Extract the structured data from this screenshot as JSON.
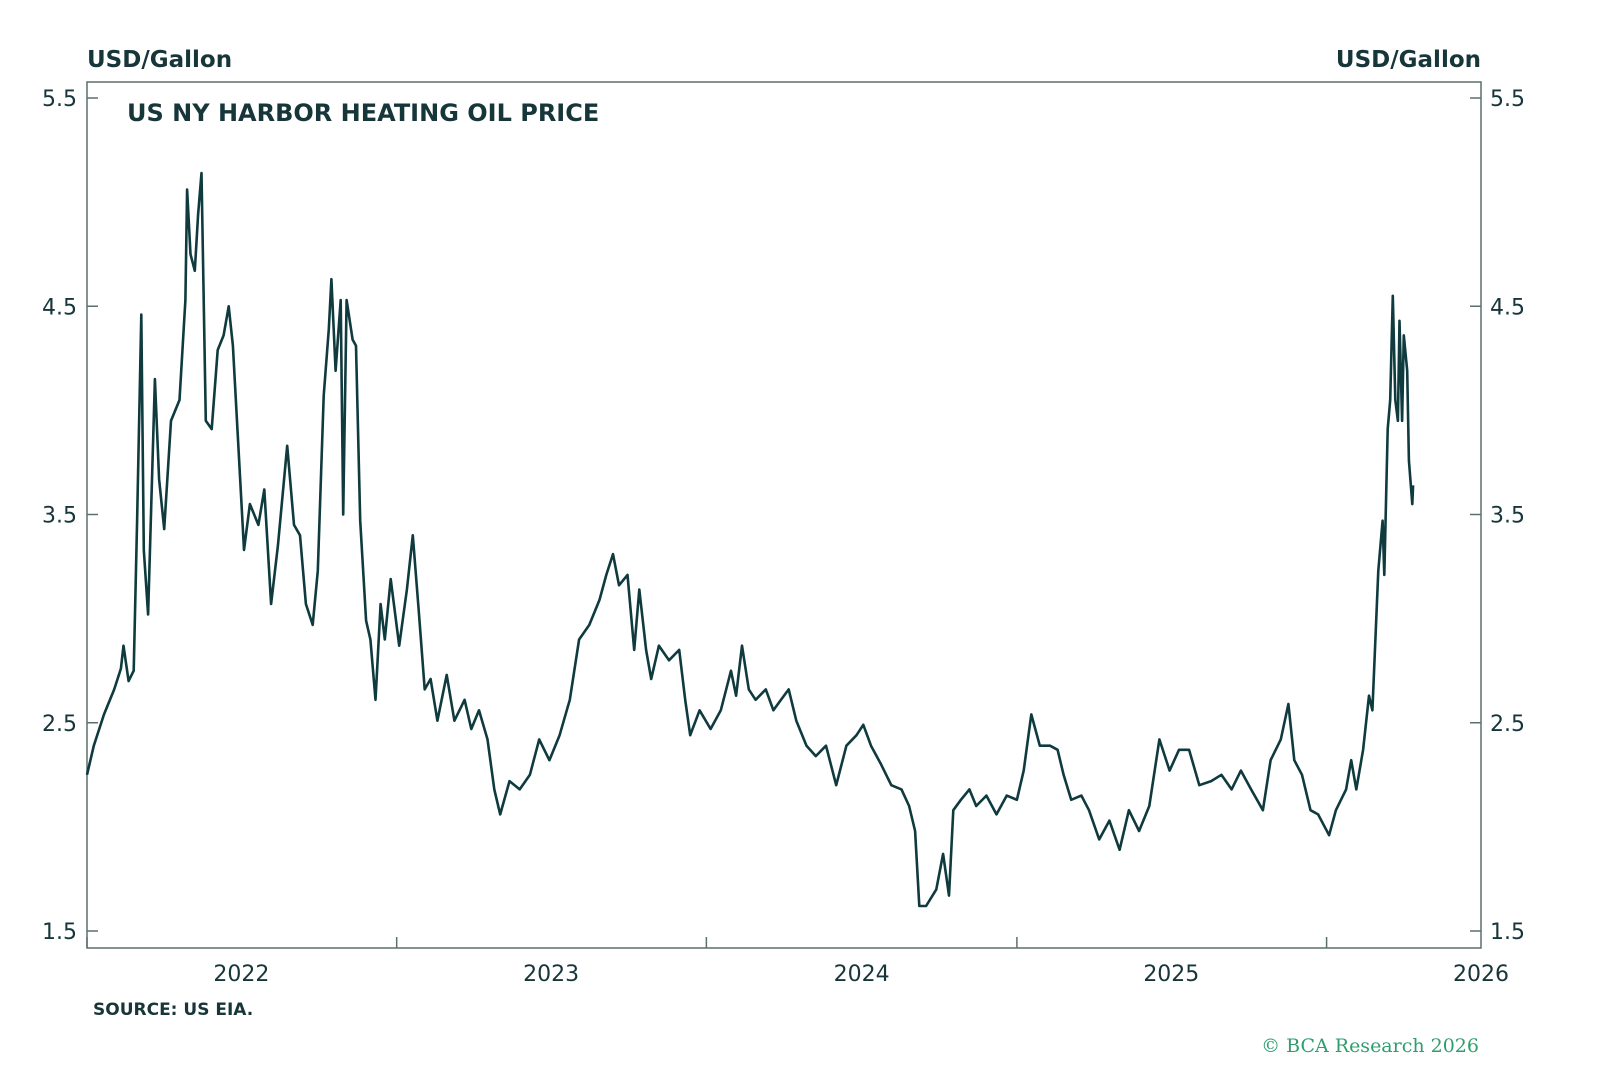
{
  "chart_data": {
    "type": "line",
    "title": "US NY HARBOR HEATING OIL PRICE",
    "ylabel_left": "USD/Gallon",
    "ylabel_right": "USD/Gallon",
    "ylim": [
      1.5,
      5.5
    ],
    "yticks": [
      "1.5",
      "2.5",
      "3.5",
      "4.5",
      "5.5"
    ],
    "xlim": [
      "2022-01-01",
      "2026-07-02"
    ],
    "xticks": [
      "2022",
      "2023",
      "2024",
      "2025",
      "2026"
    ],
    "grid": false,
    "line_color": "#0f3a3e",
    "source": "SOURCE: US EIA.",
    "copyright": "© BCA Research 2026",
    "series": [
      {
        "points": [
          [
            "2022-01-01",
            2.25
          ],
          [
            "2022-01-09",
            2.39
          ],
          [
            "2022-01-21",
            2.54
          ],
          [
            "2022-02-02",
            2.66
          ],
          [
            "2022-02-10",
            2.76
          ],
          [
            "2022-02-13",
            2.87
          ],
          [
            "2022-02-19",
            2.7
          ],
          [
            "2022-02-25",
            2.75
          ],
          [
            "2022-03-01",
            3.47
          ],
          [
            "2022-03-06",
            4.46
          ],
          [
            "2022-03-09",
            3.33
          ],
          [
            "2022-03-14",
            3.02
          ],
          [
            "2022-03-22",
            4.15
          ],
          [
            "2022-03-27",
            3.67
          ],
          [
            "2022-04-02",
            3.43
          ],
          [
            "2022-04-10",
            3.95
          ],
          [
            "2022-04-20",
            4.05
          ],
          [
            "2022-04-27",
            4.53
          ],
          [
            "2022-04-29",
            5.06
          ],
          [
            "2022-05-03",
            4.75
          ],
          [
            "2022-05-08",
            4.67
          ],
          [
            "2022-05-12",
            4.94
          ],
          [
            "2022-05-16",
            5.14
          ],
          [
            "2022-05-21",
            3.95
          ],
          [
            "2022-05-28",
            3.91
          ],
          [
            "2022-06-04",
            4.29
          ],
          [
            "2022-06-11",
            4.36
          ],
          [
            "2022-06-17",
            4.5
          ],
          [
            "2022-06-22",
            4.31
          ],
          [
            "2022-06-28",
            3.86
          ],
          [
            "2022-07-05",
            3.33
          ],
          [
            "2022-07-12",
            3.55
          ],
          [
            "2022-07-22",
            3.45
          ],
          [
            "2022-07-29",
            3.62
          ],
          [
            "2022-08-06",
            3.07
          ],
          [
            "2022-08-14",
            3.35
          ],
          [
            "2022-08-25",
            3.83
          ],
          [
            "2022-09-02",
            3.45
          ],
          [
            "2022-09-09",
            3.4
          ],
          [
            "2022-09-16",
            3.07
          ],
          [
            "2022-09-24",
            2.97
          ],
          [
            "2022-09-30",
            3.23
          ],
          [
            "2022-10-07",
            4.07
          ],
          [
            "2022-10-13",
            4.39
          ],
          [
            "2022-10-16",
            4.63
          ],
          [
            "2022-10-21",
            4.19
          ],
          [
            "2022-10-27",
            4.53
          ],
          [
            "2022-10-30",
            3.5
          ],
          [
            "2022-11-03",
            4.53
          ],
          [
            "2022-11-10",
            4.34
          ],
          [
            "2022-11-14",
            4.31
          ],
          [
            "2022-11-19",
            3.47
          ],
          [
            "2022-11-26",
            2.99
          ],
          [
            "2022-12-01",
            2.9
          ],
          [
            "2022-12-07",
            2.61
          ],
          [
            "2022-12-13",
            3.07
          ],
          [
            "2022-12-18",
            2.9
          ],
          [
            "2022-12-25",
            3.19
          ],
          [
            "2023-01-04",
            2.87
          ],
          [
            "2023-01-13",
            3.14
          ],
          [
            "2023-01-20",
            3.4
          ],
          [
            "2023-01-27",
            3.04
          ],
          [
            "2023-02-03",
            2.66
          ],
          [
            "2023-02-10",
            2.71
          ],
          [
            "2023-02-18",
            2.51
          ],
          [
            "2023-03-01",
            2.73
          ],
          [
            "2023-03-10",
            2.51
          ],
          [
            "2023-03-22",
            2.61
          ],
          [
            "2023-03-30",
            2.47
          ],
          [
            "2023-04-08",
            2.56
          ],
          [
            "2023-04-18",
            2.42
          ],
          [
            "2023-04-26",
            2.18
          ],
          [
            "2023-05-03",
            2.06
          ],
          [
            "2023-05-14",
            2.22
          ],
          [
            "2023-05-26",
            2.18
          ],
          [
            "2023-06-07",
            2.25
          ],
          [
            "2023-06-18",
            2.42
          ],
          [
            "2023-06-30",
            2.32
          ],
          [
            "2023-07-12",
            2.44
          ],
          [
            "2023-07-24",
            2.61
          ],
          [
            "2023-08-04",
            2.9
          ],
          [
            "2023-08-16",
            2.97
          ],
          [
            "2023-08-28",
            3.09
          ],
          [
            "2023-09-05",
            3.21
          ],
          [
            "2023-09-13",
            3.31
          ],
          [
            "2023-09-20",
            3.16
          ],
          [
            "2023-09-30",
            3.21
          ],
          [
            "2023-10-08",
            2.85
          ],
          [
            "2023-10-14",
            3.14
          ],
          [
            "2023-10-22",
            2.85
          ],
          [
            "2023-10-28",
            2.71
          ],
          [
            "2023-11-06",
            2.87
          ],
          [
            "2023-11-18",
            2.8
          ],
          [
            "2023-11-30",
            2.85
          ],
          [
            "2023-12-07",
            2.61
          ],
          [
            "2023-12-13",
            2.44
          ],
          [
            "2023-12-24",
            2.56
          ],
          [
            "2024-01-06",
            2.47
          ],
          [
            "2024-01-18",
            2.56
          ],
          [
            "2024-01-30",
            2.75
          ],
          [
            "2024-02-05",
            2.63
          ],
          [
            "2024-02-12",
            2.87
          ],
          [
            "2024-02-20",
            2.66
          ],
          [
            "2024-02-28",
            2.61
          ],
          [
            "2024-03-11",
            2.66
          ],
          [
            "2024-03-20",
            2.56
          ],
          [
            "2024-03-29",
            2.61
          ],
          [
            "2024-04-07",
            2.66
          ],
          [
            "2024-04-16",
            2.51
          ],
          [
            "2024-04-28",
            2.39
          ],
          [
            "2024-05-09",
            2.34
          ],
          [
            "2024-05-21",
            2.39
          ],
          [
            "2024-06-02",
            2.2
          ],
          [
            "2024-06-14",
            2.39
          ],
          [
            "2024-06-26",
            2.44
          ],
          [
            "2024-07-04",
            2.49
          ],
          [
            "2024-07-13",
            2.39
          ],
          [
            "2024-07-25",
            2.3
          ],
          [
            "2024-08-06",
            2.2
          ],
          [
            "2024-08-18",
            2.18
          ],
          [
            "2024-08-27",
            2.1
          ],
          [
            "2024-09-03",
            1.98
          ],
          [
            "2024-09-08",
            1.62
          ],
          [
            "2024-09-16",
            1.62
          ],
          [
            "2024-09-28",
            1.7
          ],
          [
            "2024-10-06",
            1.87
          ],
          [
            "2024-10-13",
            1.67
          ],
          [
            "2024-10-18",
            2.08
          ],
          [
            "2024-10-27",
            2.13
          ],
          [
            "2024-11-06",
            2.18
          ],
          [
            "2024-11-14",
            2.1
          ],
          [
            "2024-11-26",
            2.15
          ],
          [
            "2024-12-08",
            2.06
          ],
          [
            "2024-12-20",
            2.15
          ],
          [
            "2025-01-01",
            2.13
          ],
          [
            "2025-01-09",
            2.27
          ],
          [
            "2025-01-18",
            2.54
          ],
          [
            "2025-01-28",
            2.39
          ],
          [
            "2025-02-09",
            2.39
          ],
          [
            "2025-02-18",
            2.37
          ],
          [
            "2025-02-25",
            2.25
          ],
          [
            "2025-03-06",
            2.13
          ],
          [
            "2025-03-18",
            2.15
          ],
          [
            "2025-03-27",
            2.08
          ],
          [
            "2025-04-08",
            1.94
          ],
          [
            "2025-04-20",
            2.03
          ],
          [
            "2025-05-02",
            1.89
          ],
          [
            "2025-05-13",
            2.08
          ],
          [
            "2025-05-25",
            1.98
          ],
          [
            "2025-06-06",
            2.1
          ],
          [
            "2025-06-18",
            2.42
          ],
          [
            "2025-06-30",
            2.27
          ],
          [
            "2025-07-11",
            2.37
          ],
          [
            "2025-07-23",
            2.37
          ],
          [
            "2025-08-04",
            2.2
          ],
          [
            "2025-08-18",
            2.22
          ],
          [
            "2025-08-30",
            2.25
          ],
          [
            "2025-09-11",
            2.18
          ],
          [
            "2025-09-22",
            2.27
          ],
          [
            "2025-10-04",
            2.18
          ],
          [
            "2025-10-18",
            2.08
          ],
          [
            "2025-10-27",
            2.32
          ],
          [
            "2025-11-08",
            2.42
          ],
          [
            "2025-11-17",
            2.59
          ],
          [
            "2025-11-24",
            2.32
          ],
          [
            "2025-12-03",
            2.25
          ],
          [
            "2025-12-13",
            2.08
          ],
          [
            "2025-12-22",
            2.06
          ],
          [
            "2026-01-04",
            1.96
          ],
          [
            "2026-01-12",
            2.08
          ],
          [
            "2026-01-24",
            2.18
          ],
          [
            "2026-01-30",
            2.32
          ],
          [
            "2026-02-05",
            2.18
          ],
          [
            "2026-02-13",
            2.37
          ],
          [
            "2026-02-20",
            2.63
          ],
          [
            "2026-02-24",
            2.56
          ],
          [
            "2026-03-03",
            3.23
          ],
          [
            "2026-03-08",
            3.47
          ],
          [
            "2026-03-10",
            3.21
          ],
          [
            "2026-03-14",
            3.91
          ],
          [
            "2026-03-17",
            4.05
          ],
          [
            "2026-03-20",
            4.55
          ],
          [
            "2026-03-23",
            4.05
          ],
          [
            "2026-03-26",
            3.95
          ],
          [
            "2026-03-28",
            4.43
          ],
          [
            "2026-03-31",
            3.95
          ],
          [
            "2026-04-02",
            4.36
          ],
          [
            "2026-04-06",
            4.19
          ],
          [
            "2026-04-08",
            3.76
          ],
          [
            "2026-04-12",
            3.55
          ],
          [
            "2026-04-13",
            3.64
          ]
        ]
      }
    ]
  }
}
